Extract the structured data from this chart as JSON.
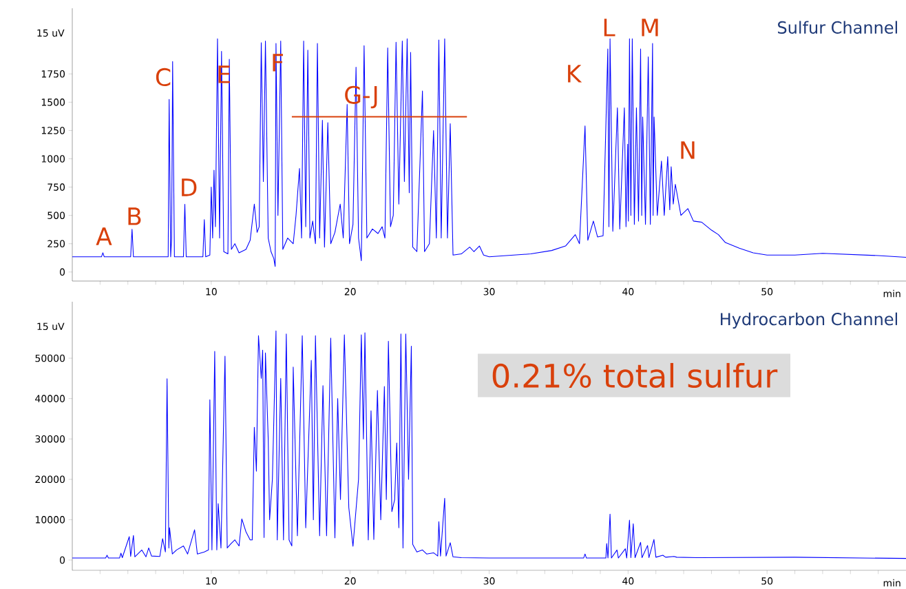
{
  "chart_data": [
    {
      "type": "line",
      "title": "Sulfur Channel",
      "xlabel": "min",
      "xlim": [
        0,
        60
      ],
      "ylim": [
        -80,
        2330
      ],
      "xticks": [
        {
          "value": 2,
          "label": null
        },
        {
          "value": 4,
          "label": null
        },
        {
          "value": 6,
          "label": null
        },
        {
          "value": 8,
          "label": null
        },
        10,
        {
          "value": 12,
          "label": null
        },
        {
          "value": 14,
          "label": null
        },
        {
          "value": 16,
          "label": null
        },
        {
          "value": 18,
          "label": null
        },
        20,
        {
          "value": 22,
          "label": null
        },
        {
          "value": 24,
          "label": null
        },
        {
          "value": 26,
          "label": null
        },
        {
          "value": 28,
          "label": null
        },
        30,
        {
          "value": 32,
          "label": null
        },
        {
          "value": 34,
          "label": null
        },
        {
          "value": 36,
          "label": null
        },
        {
          "value": 38,
          "label": null
        },
        40,
        {
          "value": 42,
          "label": null
        },
        {
          "value": 44,
          "label": null
        },
        {
          "value": 46,
          "label": null
        },
        {
          "value": 48,
          "label": null
        },
        50,
        {
          "value": 52,
          "label": null
        },
        {
          "value": 54,
          "label": null
        },
        {
          "value": 56,
          "label": null
        },
        {
          "value": 58,
          "label": null
        }
      ],
      "ylabel": "15 uV",
      "yticks": [
        0,
        250,
        500,
        750,
        1000,
        1250,
        1500,
        1750
      ],
      "series": [
        {
          "color": "#0000ff",
          "x": [
            0,
            2.1,
            2.2,
            2.3,
            4.2,
            4.3,
            4.4,
            6.9,
            6.97,
            7.08,
            7.15,
            7.22,
            7.35,
            8.0,
            8.1,
            8.2,
            9.4,
            9.5,
            9.6,
            9.9,
            10.0,
            10.1,
            10.2,
            10.3,
            10.45,
            10.6,
            10.74,
            10.9,
            11.2,
            11.3,
            11.45,
            11.7,
            12.0,
            12.5,
            12.8,
            13.1,
            13.3,
            13.45,
            13.6,
            13.75,
            13.9,
            14.1,
            14.3,
            14.5,
            14.6,
            14.66,
            14.8,
            15.0,
            15.15,
            15.5,
            15.9,
            16.1,
            16.35,
            16.5,
            16.65,
            16.8,
            16.95,
            17.1,
            17.3,
            17.5,
            17.64,
            17.8,
            18.0,
            18.15,
            18.39,
            18.6,
            18.9,
            19.28,
            19.5,
            19.78,
            19.95,
            20.2,
            20.42,
            20.6,
            20.8,
            21.0,
            21.2,
            21.6,
            22.0,
            22.3,
            22.5,
            22.7,
            22.9,
            23.1,
            23.3,
            23.5,
            23.75,
            23.9,
            24.1,
            24.25,
            24.35,
            24.5,
            24.8,
            25.2,
            25.35,
            25.7,
            26.0,
            26.2,
            26.38,
            26.55,
            26.8,
            27.0,
            27.2,
            27.4,
            28.0,
            28.6,
            28.9,
            29.3,
            29.6,
            30.0,
            33.0,
            34.5,
            35.5,
            36.2,
            36.5,
            36.9,
            37.1,
            37.5,
            37.8,
            38.2,
            38.54,
            38.62,
            38.7,
            38.9,
            39.23,
            39.4,
            39.73,
            39.85,
            39.97,
            40.02,
            40.1,
            40.2,
            40.3,
            40.45,
            40.6,
            40.75,
            40.9,
            40.98,
            41.05,
            41.25,
            41.45,
            41.6,
            41.76,
            41.8,
            41.87,
            42.1,
            42.4,
            42.6,
            42.85,
            43.0,
            43.1,
            43.25,
            43.4,
            43.8,
            44.3,
            44.7,
            45.3,
            46.0,
            46.5,
            47.0,
            48.0,
            49.0,
            50.0,
            52.0,
            54.0,
            56.0,
            58.0,
            60.0
          ],
          "values": [
            134,
            134,
            170,
            134,
            134,
            378,
            134,
            134,
            1525,
            134,
            300,
            1860,
            134,
            134,
            598,
            134,
            134,
            463,
            134,
            150,
            750,
            300,
            900,
            400,
            2060,
            300,
            1950,
            180,
            160,
            1880,
            200,
            250,
            170,
            200,
            280,
            600,
            350,
            400,
            2025,
            800,
            2040,
            300,
            180,
            120,
            49,
            2020,
            500,
            2040,
            200,
            300,
            250,
            500,
            915,
            300,
            2040,
            400,
            1960,
            300,
            450,
            250,
            2020,
            300,
            1340,
            220,
            1320,
            250,
            350,
            600,
            300,
            1480,
            250,
            420,
            1810,
            300,
            100,
            2000,
            300,
            380,
            340,
            400,
            300,
            1980,
            400,
            500,
            2030,
            600,
            2040,
            800,
            2060,
            700,
            1940,
            220,
            180,
            1600,
            180,
            250,
            1250,
            300,
            2050,
            300,
            2060,
            300,
            1310,
            150,
            160,
            220,
            180,
            230,
            150,
            134,
            160,
            190,
            230,
            330,
            250,
            1290,
            280,
            450,
            310,
            320,
            1970,
            400,
            2060,
            360,
            1450,
            380,
            1450,
            400,
            1130,
            450,
            2060,
            500,
            2060,
            420,
            1450,
            450,
            1970,
            500,
            1370,
            420,
            1900,
            420,
            2020,
            500,
            1370,
            500,
            980,
            500,
            1020,
            550,
            930,
            600,
            775,
            500,
            560,
            450,
            440,
            370,
            330,
            260,
            210,
            170,
            150,
            150,
            165,
            155,
            145,
            130
          ]
        },
        {
          "type": "line",
          "color": "#d9400b",
          "x": [
            15.8,
            28.4
          ],
          "values": [
            1372,
            1372
          ]
        }
      ],
      "annotations": [
        "A",
        "B",
        "C",
        "D",
        "E",
        "F",
        "G-J",
        "K",
        "L",
        "M",
        "N"
      ]
    },
    {
      "type": "line",
      "title": "Hydrocarbon Channel",
      "xlabel": "min",
      "xlim": [
        0,
        60
      ],
      "ylim": [
        -2560,
        64000
      ],
      "xticks": [
        {
          "value": 2,
          "label": null
        },
        {
          "value": 4,
          "label": null
        },
        {
          "value": 6,
          "label": null
        },
        {
          "value": 8,
          "label": null
        },
        10,
        {
          "value": 12,
          "label": null
        },
        {
          "value": 14,
          "label": null
        },
        {
          "value": 16,
          "label": null
        },
        {
          "value": 18,
          "label": null
        },
        20,
        {
          "value": 22,
          "label": null
        },
        {
          "value": 24,
          "label": null
        },
        {
          "value": 26,
          "label": null
        },
        {
          "value": 28,
          "label": null
        },
        30,
        {
          "value": 32,
          "label": null
        },
        {
          "value": 34,
          "label": null
        },
        {
          "value": 36,
          "label": null
        },
        {
          "value": 38,
          "label": null
        },
        40,
        {
          "value": 42,
          "label": null
        },
        {
          "value": 44,
          "label": null
        },
        {
          "value": 46,
          "label": null
        },
        {
          "value": 48,
          "label": null
        },
        50,
        {
          "value": 52,
          "label": null
        },
        {
          "value": 54,
          "label": null
        },
        {
          "value": 56,
          "label": null
        },
        {
          "value": 58,
          "label": null
        }
      ],
      "ylabel": "15 uV",
      "yticks": [
        0,
        10000,
        20000,
        30000,
        40000,
        50000
      ],
      "series": [
        {
          "color": "#0000ff",
          "x": [
            0,
            2.4,
            2.5,
            2.6,
            3.4,
            3.5,
            3.6,
            4.1,
            4.2,
            4.4,
            4.5,
            5.0,
            5.3,
            5.5,
            5.7,
            6.3,
            6.5,
            6.7,
            6.82,
            6.95,
            7.0,
            7.2,
            7.5,
            8.0,
            8.3,
            8.8,
            9.0,
            9.5,
            9.8,
            9.9,
            10.05,
            10.25,
            10.4,
            10.5,
            10.7,
            10.99,
            11.15,
            11.4,
            11.7,
            12.0,
            12.2,
            12.5,
            12.8,
            12.95,
            13.1,
            13.25,
            13.4,
            13.6,
            13.7,
            13.8,
            13.9,
            14.1,
            14.2,
            14.4,
            14.66,
            14.75,
            15.0,
            15.2,
            15.4,
            15.6,
            15.8,
            15.9,
            16.2,
            16.55,
            16.8,
            17.2,
            17.35,
            17.5,
            17.8,
            18.04,
            18.3,
            18.6,
            18.9,
            19.1,
            19.3,
            19.58,
            19.9,
            20.2,
            20.6,
            20.8,
            20.95,
            21.06,
            21.3,
            21.5,
            21.7,
            21.96,
            22.2,
            22.46,
            22.6,
            22.75,
            23.0,
            23.2,
            23.35,
            23.5,
            23.65,
            23.8,
            24.0,
            24.2,
            24.4,
            24.5,
            24.8,
            25.2,
            25.5,
            26.0,
            26.3,
            26.38,
            26.5,
            26.8,
            26.9,
            27.2,
            27.4,
            28.0,
            30.0,
            36.8,
            36.9,
            37.0,
            38.4,
            38.46,
            38.55,
            38.7,
            38.8,
            39.2,
            39.3,
            39.8,
            39.9,
            40.1,
            40.2,
            40.37,
            40.5,
            40.9,
            41.0,
            41.4,
            41.5,
            41.86,
            42.0,
            42.5,
            42.7,
            43.3,
            43.5,
            45.0,
            52.0,
            60.0
          ],
          "values": [
            500,
            500,
            1200,
            500,
            500,
            1700,
            600,
            5800,
            900,
            6100,
            800,
            2500,
            800,
            3000,
            1000,
            900,
            5300,
            2000,
            44900,
            3000,
            8000,
            1500,
            2500,
            3500,
            1500,
            7500,
            1500,
            2000,
            2500,
            39700,
            2500,
            51700,
            2500,
            14000,
            3000,
            50500,
            3000,
            4000,
            5000,
            3500,
            10200,
            7000,
            5000,
            5000,
            32900,
            22000,
            55600,
            45000,
            52000,
            5600,
            51300,
            30000,
            10000,
            20000,
            56800,
            5000,
            45000,
            5000,
            56000,
            5000,
            3500,
            47800,
            6000,
            55600,
            8000,
            49500,
            10000,
            55600,
            6000,
            43200,
            6000,
            55000,
            5500,
            40000,
            15000,
            55800,
            13000,
            3400,
            20000,
            55800,
            30000,
            56300,
            5000,
            37000,
            5100,
            42000,
            10000,
            43000,
            15000,
            54200,
            12000,
            15000,
            29000,
            8000,
            56000,
            3000,
            56000,
            20000,
            53000,
            3900,
            2000,
            2500,
            1500,
            1800,
            1000,
            9500,
            1000,
            15300,
            1000,
            4300,
            800,
            600,
            500,
            500,
            1500,
            500,
            500,
            4100,
            500,
            11400,
            500,
            2500,
            500,
            2800,
            500,
            9900,
            600,
            9000,
            600,
            4400,
            600,
            3600,
            600,
            5100,
            700,
            1200,
            700,
            900,
            700,
            600,
            700,
            400
          ]
        }
      ],
      "annotations": [
        "0.21% total sulfur"
      ]
    }
  ]
}
